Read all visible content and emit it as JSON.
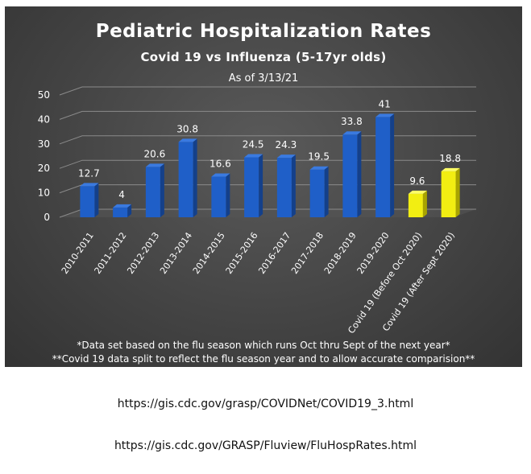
{
  "chart_data": {
    "type": "bar",
    "title": "Pediatric Hospitalization Rates",
    "subtitle": "Covid 19 vs Influenza (5-17yr olds)",
    "as_of": "As of 3/13/21",
    "categories": [
      "2010-2011",
      "2011-2012",
      "2012-2013",
      "2013-2014",
      "2014-2015",
      "2015-2016",
      "2016-2017",
      "2017-2018",
      "2018-2019",
      "2019-2020",
      "Covid 19 (Before Oct 2020)",
      "Covid 19 (After Sept 2020)"
    ],
    "values": [
      12.7,
      4,
      20.6,
      30.8,
      16.6,
      24.5,
      24.3,
      19.5,
      33.8,
      41,
      9.6,
      18.8
    ],
    "data_labels": [
      "12.7",
      "4",
      "20.6",
      "30.8",
      "16.6",
      "24.5",
      "24.3",
      "19.5",
      "33.8",
      "41",
      "9.6",
      "18.8"
    ],
    "bar_groups": [
      "influenza",
      "influenza",
      "influenza",
      "influenza",
      "influenza",
      "influenza",
      "influenza",
      "influenza",
      "influenza",
      "influenza",
      "covid",
      "covid"
    ],
    "ylim": [
      0,
      50
    ],
    "yticks": [
      "0",
      "10",
      "20",
      "30",
      "40",
      "50"
    ],
    "grid": true,
    "legend": "none"
  },
  "colors": {
    "influenza": "#1f5fc8",
    "covid": "#f2ee12",
    "background": "#444444",
    "text": "#ffffff"
  },
  "footnotes": [
    "*Data set based on the flu season which runs Oct thru Sept of the next year*",
    "**Covid 19 data split to reflect the flu season year and to allow accurate comparision**"
  ],
  "sources": [
    "https://gis.cdc.gov/grasp/COVIDNet/COVID19_3.html",
    "https://gis.cdc.gov/GRASP/Fluview/FluHospRates.html"
  ]
}
